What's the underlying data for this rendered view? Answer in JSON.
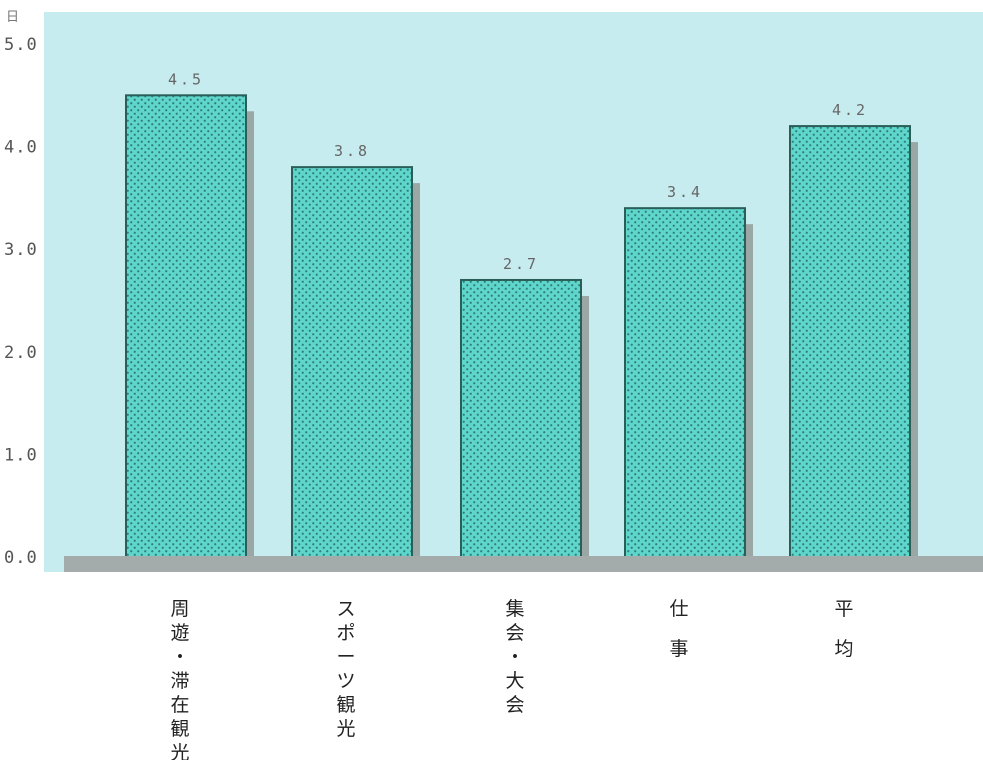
{
  "chart_data": {
    "type": "bar",
    "unit": "日",
    "categories": [
      "周遊・滞在観光",
      "スポーツ観光",
      "集会・大会",
      "仕事",
      "平均"
    ],
    "category_labels": [
      [
        "周",
        "遊",
        "・",
        "滞",
        "在",
        "観",
        "光"
      ],
      [
        "ス",
        "ポ",
        "ー",
        "ツ",
        "観",
        "光"
      ],
      [
        "集",
        "会",
        "・",
        "大",
        "会"
      ],
      [
        "仕",
        "事"
      ],
      [
        "平",
        "均"
      ]
    ],
    "values": [
      4.5,
      3.8,
      2.7,
      3.4,
      4.2
    ],
    "value_labels": [
      "4.5",
      "3.8",
      "2.7",
      "3.4",
      "4.2"
    ],
    "yticks": [
      "0.0",
      "1.0",
      "2.0",
      "3.0",
      "4.0",
      "5.0"
    ],
    "ylim": [
      0,
      5
    ],
    "grid": false,
    "colors": {
      "background": "#c7ecf0",
      "bar_fill": "#5fd6cc",
      "bar_dot": "#2f7f77",
      "bar_border": "#2a5f59",
      "shadow": "#9aa7a4",
      "floor": "#a3acaa"
    }
  }
}
